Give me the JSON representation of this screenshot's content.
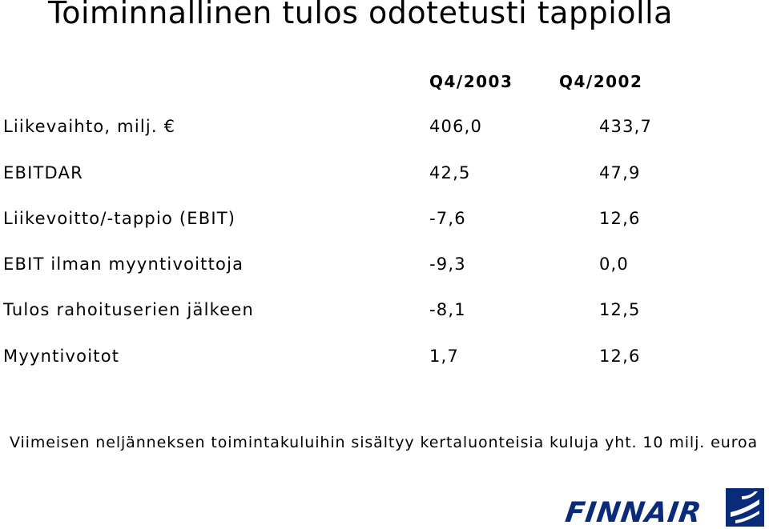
{
  "title": "Toiminnallinen tulos odotetusti tappiolla",
  "columns": [
    "Q4/2003",
    "Q4/2002"
  ],
  "rows": [
    {
      "label": "Liikevaihto, milj. €",
      "q4_2003": "406,0",
      "q4_2002": "433,7"
    },
    {
      "label": "EBITDAR",
      "q4_2003": "42,5",
      "q4_2002": "47,9"
    },
    {
      "label": "Liikevoitto/-tappio (EBIT)",
      "q4_2003": "-7,6",
      "q4_2002": "12,6"
    },
    {
      "label": "EBIT ilman myyntivoittoja",
      "q4_2003": "-9,3",
      "q4_2002": "0,0"
    },
    {
      "label": "Tulos rahoituserien jälkeen",
      "q4_2003": "-8,1",
      "q4_2002": "12,5"
    },
    {
      "label": "Myyntivoitot",
      "q4_2003": "1,7",
      "q4_2002": "12,6"
    }
  ],
  "note": "Viimeisen neljänneksen toimintakuluihin sisältyy kertaluonteisia kuluja yht. 10 milj. euroa",
  "logo": {
    "text": "FINNAIR",
    "color": "#0a2a7a"
  }
}
